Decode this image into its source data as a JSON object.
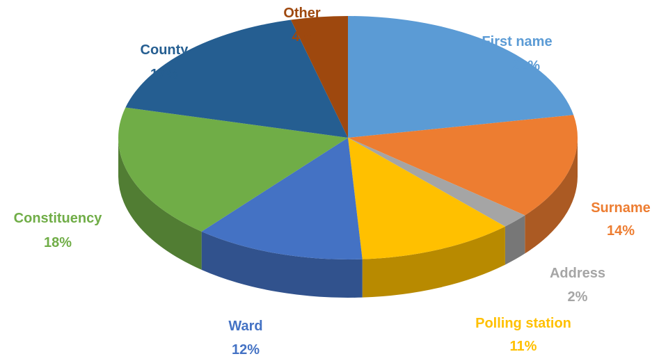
{
  "chart_data": {
    "type": "pie",
    "style": "3d",
    "title": "",
    "slices": [
      {
        "label": "First name",
        "value": 22,
        "display": "22%",
        "color": "#5B9BD5"
      },
      {
        "label": "Surname",
        "value": 14,
        "display": "14%",
        "color": "#ED7D31"
      },
      {
        "label": "Address",
        "value": 2,
        "display": "2%",
        "color": "#A5A5A5"
      },
      {
        "label": "Polling station",
        "value": 11,
        "display": "11%",
        "color": "#FFC000"
      },
      {
        "label": "Ward",
        "value": 12,
        "display": "12%",
        "color": "#4472C4"
      },
      {
        "label": "Constituency",
        "value": 18,
        "display": "18%",
        "color": "#70AD47"
      },
      {
        "label": "County",
        "value": 17,
        "display": "17%",
        "color": "#255E91"
      },
      {
        "label": "Other",
        "value": 4,
        "display": "4%",
        "color": "#9E480E"
      }
    ]
  }
}
